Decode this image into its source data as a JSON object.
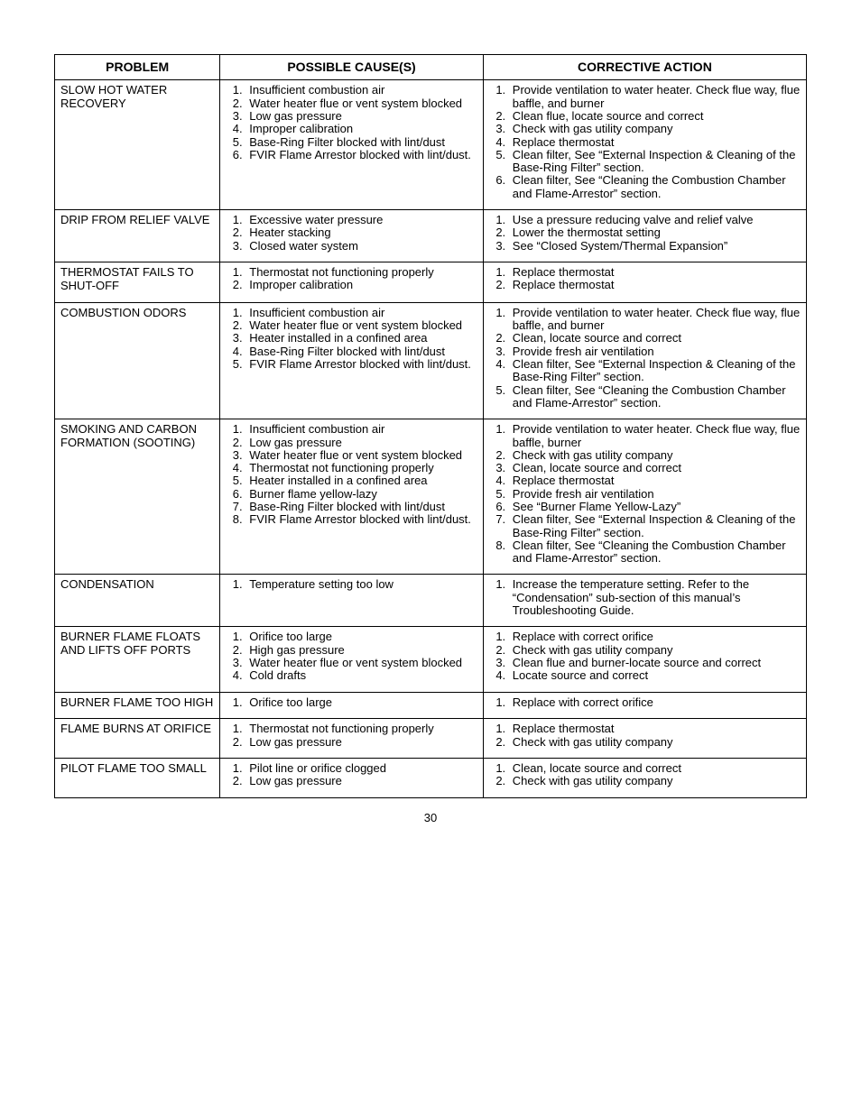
{
  "pageNumber": "30",
  "headers": {
    "problem": "PROBLEM",
    "cause": "POSSIBLE CAUSE(S)",
    "action": "CORRECTIVE ACTION"
  },
  "columnWidths": {
    "problem": "22%",
    "cause": "35%",
    "action": "43%"
  },
  "colors": {
    "text": "#000000",
    "background": "#ffffff",
    "border": "#000000"
  },
  "typography": {
    "fontFamily": "Arial, Helvetica, sans-serif",
    "headerFontSize": 14,
    "bodyFontSize": 13,
    "lineHeight": 1.1
  },
  "rows": [
    {
      "problem": "SLOW HOT WATER RECOVERY",
      "causes": [
        "Insufficient combustion air",
        "Water heater flue or vent system blocked",
        "Low gas pressure",
        "Improper calibration",
        "Base-Ring Filter blocked with lint/dust",
        "FVIR Flame Arrestor blocked with lint/dust."
      ],
      "actions": [
        "Provide ventilation to water heater. Check flue way, flue baffle, and burner",
        "Clean flue, locate source and correct",
        "Check with gas utility company",
        "Replace thermostat",
        "Clean filter, See “External Inspection & Cleaning of the Base-Ring Filter” section.",
        "Clean filter, See “Cleaning the Combustion Chamber and Flame-Arrestor” section."
      ]
    },
    {
      "problem": "DRIP FROM RELIEF VALVE",
      "causes": [
        "Excessive water pressure",
        "Heater stacking",
        "Closed water system"
      ],
      "actions": [
        "Use a pressure reducing valve and relief valve",
        "Lower the thermostat setting",
        "See “Closed System/Thermal Expansion”"
      ]
    },
    {
      "problem": "THERMOSTAT FAILS TO SHUT-OFF",
      "causes": [
        "Thermostat not functioning properly",
        "Improper calibration"
      ],
      "actions": [
        "Replace thermostat",
        "Replace thermostat"
      ]
    },
    {
      "problem": "COMBUSTION ODORS",
      "causes": [
        "Insufficient combustion air",
        "Water heater flue or vent system blocked",
        "Heater installed in a confined area",
        "Base-Ring Filter blocked with lint/dust",
        "FVIR Flame Arrestor blocked with lint/dust."
      ],
      "actions": [
        "Provide ventilation to water heater. Check flue way, flue baffle, and burner",
        "Clean, locate source and correct",
        "Provide fresh air ventilation",
        "Clean filter, See “External Inspection & Cleaning of the Base-Ring Filter” section.",
        "Clean filter, See “Cleaning the Combustion Chamber and Flame-Arrestor” section."
      ]
    },
    {
      "problem": "SMOKING AND CARBON FORMATION (SOOTING)",
      "causes": [
        "Insufficient combustion air",
        "Low gas pressure",
        "Water heater flue or vent system blocked",
        "Thermostat not functioning properly",
        "Heater installed in a confined area",
        "Burner flame yellow-lazy",
        "Base-Ring Filter blocked with lint/dust",
        "FVIR Flame Arrestor blocked with lint/dust."
      ],
      "actions": [
        "Provide ventilation to water heater. Check flue way, flue baffle, burner",
        "Check with gas utility company",
        "Clean, locate source and correct",
        "Replace thermostat",
        "Provide fresh air ventilation",
        "See “Burner Flame Yellow-Lazy”",
        "Clean filter, See “External Inspection & Cleaning of the Base-Ring Filter” section.",
        "Clean filter, See “Cleaning the Combustion Chamber and Flame-Arrestor” section."
      ]
    },
    {
      "problem": "CONDENSATION",
      "causes": [
        "Temperature setting too low"
      ],
      "actions": [
        "Increase the temperature setting.  Refer to the “Condensation” sub-section of this manual’s Troubleshooting Guide."
      ]
    },
    {
      "problem": "BURNER FLAME FLOATS AND LIFTS  OFF PORTS",
      "causes": [
        "Orifice too large",
        "High gas pressure",
        "Water heater flue or vent system blocked",
        "Cold drafts"
      ],
      "actions": [
        "Replace with correct orifice",
        "Check with gas utility company",
        "Clean flue and burner-locate source and correct",
        "Locate source and correct"
      ]
    },
    {
      "problem": "BURNER FLAME TOO HIGH",
      "causes": [
        "Orifice too large"
      ],
      "actions": [
        "Replace with correct orifice"
      ]
    },
    {
      "problem": "FLAME BURNS AT ORIFICE",
      "causes": [
        "Thermostat not functioning properly",
        "Low gas pressure"
      ],
      "actions": [
        "Replace thermostat",
        "Check with gas utility company"
      ]
    },
    {
      "problem": "PILOT FLAME TOO SMALL",
      "causes": [
        "Pilot line or orifice clogged",
        "Low gas pressure"
      ],
      "actions": [
        "Clean, locate source and correct",
        "Check with gas utility company"
      ]
    }
  ]
}
